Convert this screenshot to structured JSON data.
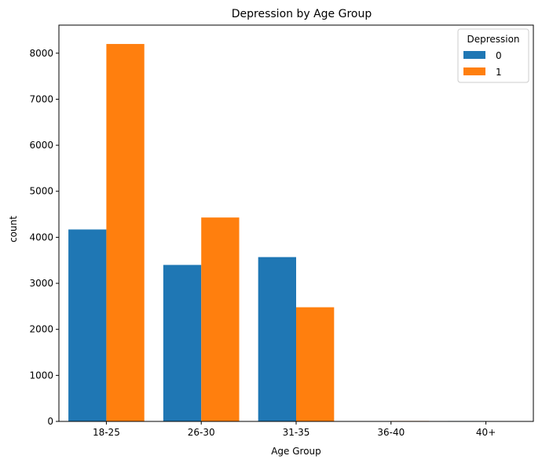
{
  "chart_data": {
    "type": "bar",
    "title": "Depression by Age Group",
    "xlabel": "Age Group",
    "ylabel": "count",
    "categories": [
      "18-25",
      "26-30",
      "31-35",
      "36-40",
      "40+"
    ],
    "series": [
      {
        "name": "0",
        "color": "#1f77b4",
        "values": [
          4170,
          3400,
          3570,
          8,
          9
        ]
      },
      {
        "name": "1",
        "color": "#ff7f0e",
        "values": [
          8200,
          4430,
          2480,
          10,
          8
        ]
      }
    ],
    "ylim": [
      0,
      8610
    ],
    "yticks": [
      0,
      1000,
      2000,
      3000,
      4000,
      5000,
      6000,
      7000,
      8000
    ],
    "legend": {
      "title": "Depression",
      "placement": "top-right"
    },
    "grid": false
  }
}
